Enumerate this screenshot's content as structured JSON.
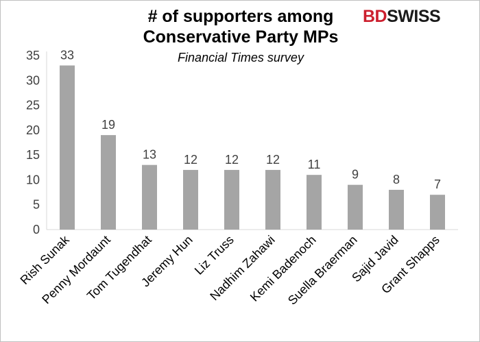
{
  "header": {
    "title_line1": "# of supporters among",
    "title_line2": "Conservative Party MPs",
    "subtitle": "Financial Times survey"
  },
  "brand": {
    "part1": "BD",
    "part2": "SWISS"
  },
  "colors": {
    "bar": "#a5a5a5",
    "axis": "#d9d9d9",
    "brand_red": "#cc1f2e"
  },
  "chart_data": {
    "type": "bar",
    "title": "# of supporters among Conservative Party MPs",
    "subtitle": "Financial Times survey",
    "categories": [
      "Rish Sunak",
      "Penny Mordaunt",
      "Tom Tugendhat",
      "Jeremy Hun",
      "Liz Truss",
      "Nadhim Zahawi",
      "Kemi Badenoch",
      "Suella Braerman",
      "Sajid Javid",
      "Grant Shapps"
    ],
    "values": [
      33,
      19,
      13,
      12,
      12,
      12,
      11,
      9,
      8,
      7
    ],
    "ylim": [
      0,
      35
    ],
    "yticks": [
      0,
      5,
      10,
      15,
      20,
      25,
      30,
      35
    ],
    "grid": false,
    "data_labels": true,
    "xlabel": "",
    "ylabel": ""
  }
}
